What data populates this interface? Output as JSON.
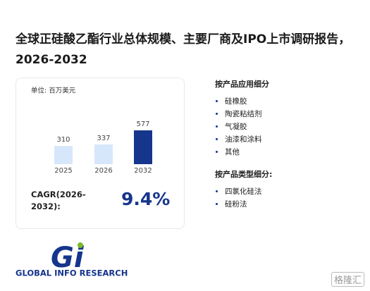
{
  "title": "全球正硅酸乙酯行业总体规模、主要厂商及IPO上市调研报告，2026-2032",
  "chart_data": {
    "type": "bar",
    "unit": "单位: 百万美元",
    "categories": [
      "2025",
      "2026",
      "2032"
    ],
    "values": [
      310,
      337,
      577
    ],
    "colors": [
      "#d7e7fb",
      "#d7e7fb",
      "#16358c"
    ]
  },
  "cagr": {
    "label_lines": [
      "CAGR(2026-",
      "2032):"
    ],
    "value": "9.4%"
  },
  "sections": [
    {
      "heading": "按产品应用细分",
      "items": [
        "硅橡胶",
        "陶瓷粘结剂",
        "气凝胶",
        "油漆和涂料",
        "其他"
      ]
    },
    {
      "heading": "按产品类型细分:",
      "items": [
        "四氯化硅法",
        "硅粉法"
      ]
    }
  ],
  "logo": {
    "mark": "Gi",
    "text": "GLOBAL INFO RESEARCH"
  },
  "watermark": "格隆汇"
}
